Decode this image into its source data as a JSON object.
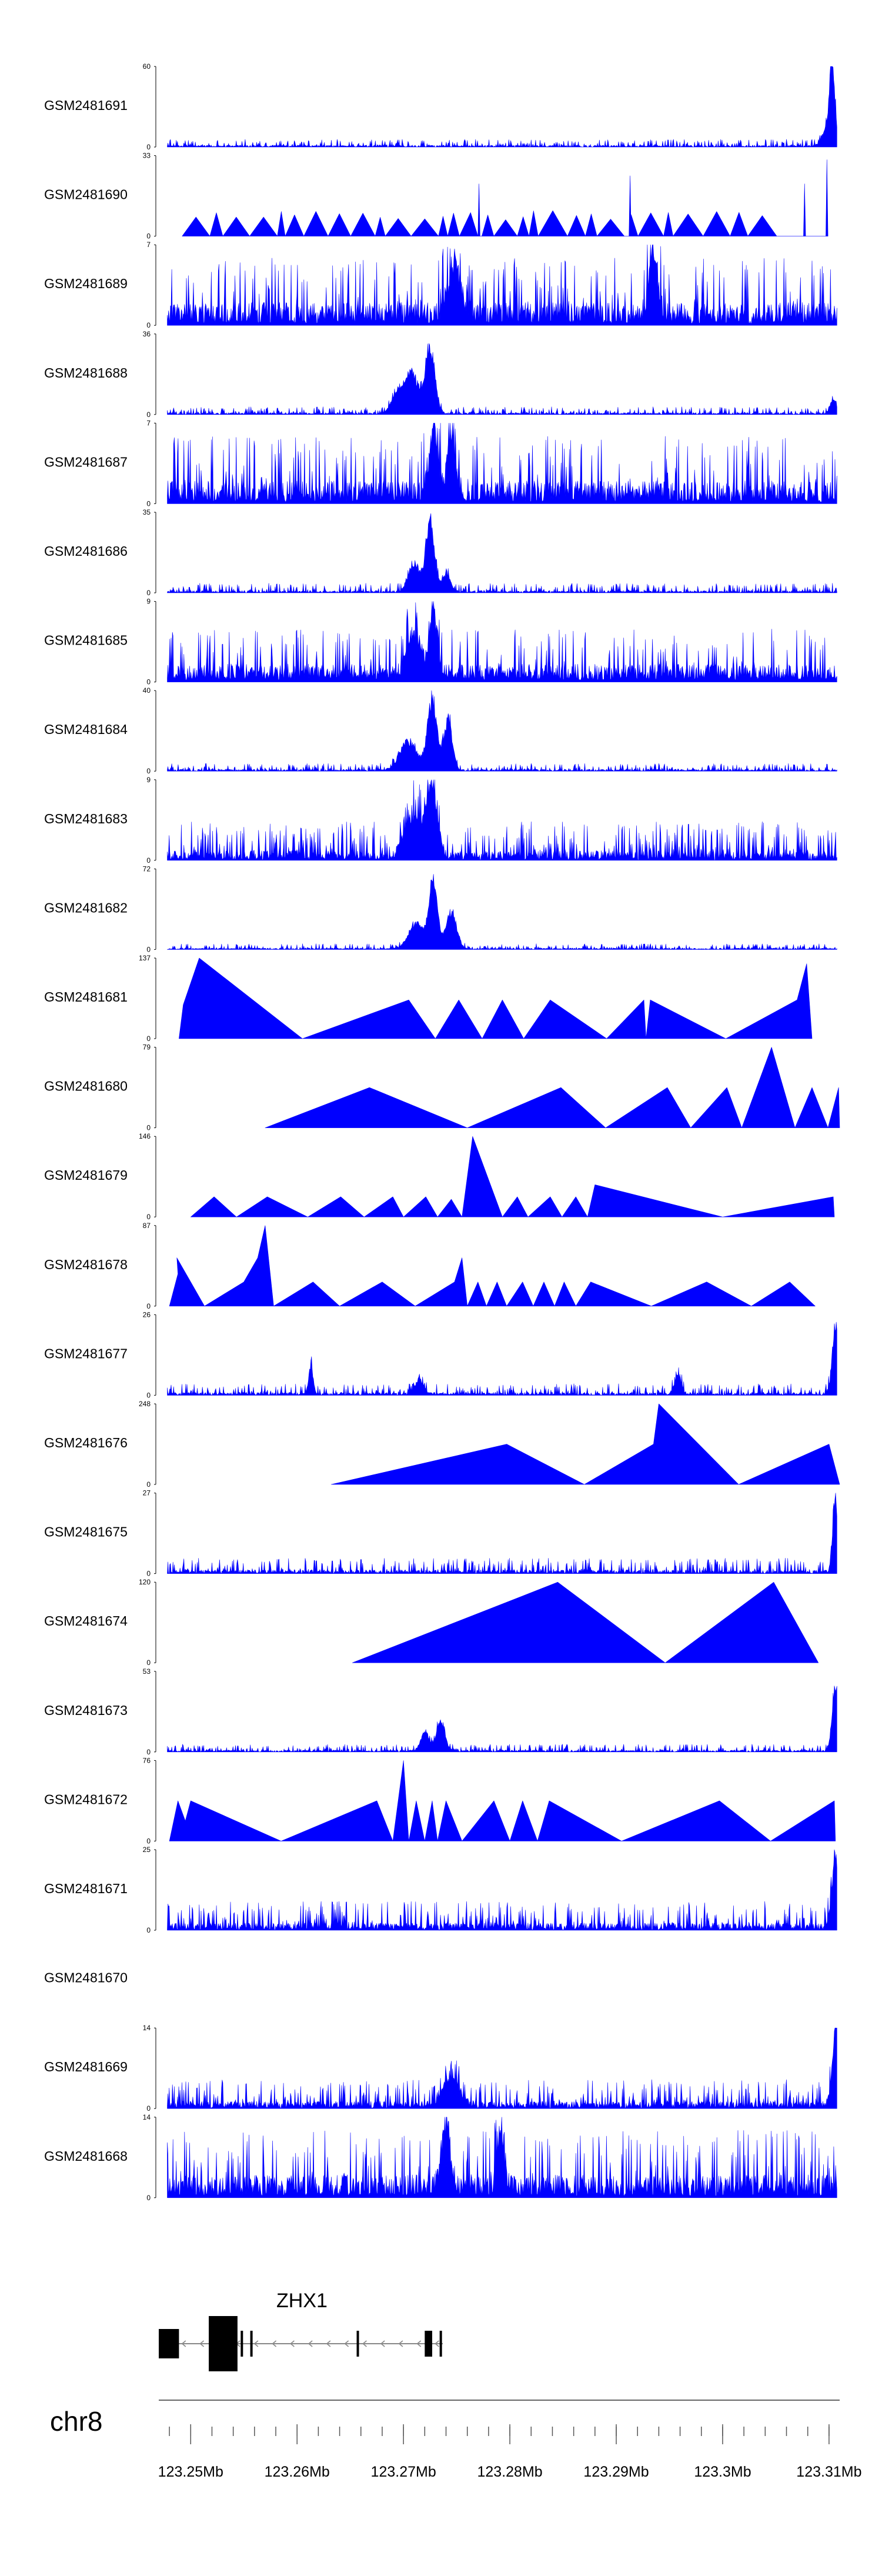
{
  "chart_data": {
    "type": "area",
    "title": "",
    "chromosome": "chr8",
    "xlim": [
      123.247,
      123.311
    ],
    "x_unit": "Mb",
    "x_ticks": [
      123.25,
      123.26,
      123.27,
      123.28,
      123.29,
      123.3,
      123.31
    ],
    "x_tick_labels": [
      "123.25Mb",
      "123.26Mb",
      "123.27Mb",
      "123.28Mb",
      "123.29Mb",
      "123.3Mb",
      "123.31Mb"
    ],
    "gene": {
      "name": "ZHX1",
      "strand": "-",
      "start": 123.247,
      "end": 123.2737,
      "exons": [
        [
          123.247,
          123.2489
        ],
        [
          123.2517,
          123.2544
        ],
        [
          123.2547,
          123.2549
        ],
        [
          123.2556,
          123.2558
        ],
        [
          123.2656,
          123.2658
        ],
        [
          123.272,
          123.2727
        ],
        [
          123.2734,
          123.2736
        ]
      ]
    },
    "series": [
      {
        "name": "GSM2481691",
        "ymin": 0,
        "ymax": 60,
        "style": "dense",
        "base": 0.04,
        "peaks": [
          [
            123.3103,
            1.0,
            0.00025
          ],
          [
            123.3099,
            0.25,
            0.0005
          ]
        ]
      },
      {
        "name": "GSM2481690",
        "ymin": 0,
        "ymax": 33,
        "style": "sparse",
        "start": 123.2492,
        "nseg": 30,
        "spikes": [
          [
            123.2771,
            0.65
          ],
          [
            123.2913,
            0.75
          ],
          [
            123.3077,
            0.65
          ],
          [
            123.3098,
            0.95
          ]
        ]
      },
      {
        "name": "GSM2481689",
        "ymin": 0,
        "ymax": 7,
        "style": "dense",
        "base": 0.38,
        "peaks": [
          [
            123.2935,
            0.9,
            0.0004
          ],
          [
            123.2748,
            0.7,
            0.0006
          ]
        ]
      },
      {
        "name": "GSM2481688",
        "ymin": 0,
        "ymax": 36,
        "style": "dense",
        "base": 0.04,
        "peaks": [
          [
            123.2725,
            0.95,
            0.00045
          ],
          [
            123.2708,
            0.55,
            0.0006
          ],
          [
            123.2695,
            0.3,
            0.0006
          ],
          [
            123.3104,
            0.2,
            0.0003
          ]
        ]
      },
      {
        "name": "GSM2481687",
        "ymin": 0,
        "ymax": 7,
        "style": "dense",
        "base": 0.38,
        "peaks": [
          [
            123.2728,
            0.9,
            0.0004
          ],
          [
            123.2745,
            0.75,
            0.0004
          ]
        ]
      },
      {
        "name": "GSM2481686",
        "ymin": 0,
        "ymax": 35,
        "style": "dense",
        "base": 0.05,
        "peaks": [
          [
            123.2725,
            1.0,
            0.0004
          ],
          [
            123.271,
            0.4,
            0.0005
          ],
          [
            123.274,
            0.25,
            0.0004
          ]
        ]
      },
      {
        "name": "GSM2481685",
        "ymin": 0,
        "ymax": 9,
        "style": "dense",
        "base": 0.3,
        "peaks": [
          [
            123.2728,
            0.9,
            0.0004
          ],
          [
            123.271,
            0.55,
            0.0006
          ]
        ]
      },
      {
        "name": "GSM2481684",
        "ymin": 0,
        "ymax": 40,
        "style": "dense",
        "base": 0.04,
        "peaks": [
          [
            123.2727,
            0.95,
            0.00045
          ],
          [
            123.2742,
            0.7,
            0.0004
          ],
          [
            123.2705,
            0.4,
            0.0008
          ]
        ]
      },
      {
        "name": "GSM2481683",
        "ymin": 0,
        "ymax": 9,
        "style": "dense",
        "base": 0.2,
        "peaks": [
          [
            123.2727,
            0.95,
            0.0005
          ],
          [
            123.271,
            0.55,
            0.0008
          ]
        ]
      },
      {
        "name": "GSM2481682",
        "ymin": 0,
        "ymax": 72,
        "style": "dense",
        "base": 0.03,
        "peaks": [
          [
            123.2728,
            0.95,
            0.0004
          ],
          [
            123.2745,
            0.5,
            0.0005
          ],
          [
            123.2712,
            0.35,
            0.0007
          ]
        ]
      },
      {
        "name": "GSM2481681",
        "ymin": 0,
        "ymax": 137,
        "style": "triangles",
        "points": [
          [
            123.2489,
            0
          ],
          [
            123.2493,
            0.42
          ],
          [
            123.2508,
            1.0
          ],
          [
            123.2605,
            0
          ],
          [
            123.2705,
            0.48
          ],
          [
            123.273,
            0
          ],
          [
            123.2752,
            0.48
          ],
          [
            123.2774,
            0
          ],
          [
            123.2793,
            0.48
          ],
          [
            123.2813,
            0
          ],
          [
            123.2838,
            0.48
          ],
          [
            123.2891,
            0
          ],
          [
            123.2926,
            0.48
          ],
          [
            123.2928,
            0
          ],
          [
            123.2932,
            0.48
          ],
          [
            123.3003,
            0
          ],
          [
            123.307,
            0.48
          ],
          [
            123.3079,
            0.93
          ],
          [
            123.3084,
            0
          ]
        ]
      },
      {
        "name": "GSM2481680",
        "ymin": 0,
        "ymax": 79,
        "style": "triangles",
        "points": [
          [
            123.257,
            0
          ],
          [
            123.2668,
            0.5
          ],
          [
            123.276,
            0
          ],
          [
            123.2848,
            0.5
          ],
          [
            123.289,
            0
          ],
          [
            123.2948,
            0.5
          ],
          [
            123.297,
            0
          ],
          [
            123.3004,
            0.5
          ],
          [
            123.3018,
            0
          ],
          [
            123.3046,
            1.0
          ],
          [
            123.3068,
            0
          ],
          [
            123.3084,
            0.5
          ],
          [
            123.3099,
            0
          ],
          [
            123.3109,
            0.5
          ],
          [
            123.311,
            0
          ]
        ]
      },
      {
        "name": "GSM2481679",
        "ymin": 0,
        "ymax": 146,
        "style": "triangles",
        "points": [
          [
            123.25,
            0
          ],
          [
            123.2522,
            0.25
          ],
          [
            123.2543,
            0
          ],
          [
            123.2572,
            0.25
          ],
          [
            123.261,
            0
          ],
          [
            123.2641,
            0.25
          ],
          [
            123.2663,
            0
          ],
          [
            123.269,
            0.25
          ],
          [
            123.27,
            0
          ],
          [
            123.2721,
            0.25
          ],
          [
            123.2732,
            0
          ],
          [
            123.2745,
            0.22
          ],
          [
            123.2755,
            0
          ],
          [
            123.2765,
            1.0
          ],
          [
            123.2793,
            0
          ],
          [
            123.2807,
            0.25
          ],
          [
            123.2817,
            0
          ],
          [
            123.2838,
            0.25
          ],
          [
            123.2849,
            0
          ],
          [
            123.2862,
            0.25
          ],
          [
            123.2873,
            0
          ],
          [
            123.288,
            0.4
          ],
          [
            123.3,
            0
          ],
          [
            123.3104,
            0.25
          ],
          [
            123.3105,
            0
          ]
        ]
      },
      {
        "name": "GSM2481678",
        "ymin": 0,
        "ymax": 87,
        "style": "triangles",
        "points": [
          [
            123.248,
            0
          ],
          [
            123.2488,
            0.4
          ],
          [
            123.2487,
            0.6
          ],
          [
            123.25,
            0.3
          ],
          [
            123.2513,
            0
          ],
          [
            123.255,
            0.3
          ],
          [
            123.2563,
            0.6
          ],
          [
            123.257,
            1.0
          ],
          [
            123.2578,
            0
          ],
          [
            123.2615,
            0.3
          ],
          [
            123.264,
            0
          ],
          [
            123.268,
            0.3
          ],
          [
            123.2711,
            0
          ],
          [
            123.2748,
            0.3
          ],
          [
            123.2755,
            0.6
          ],
          [
            123.276,
            0
          ],
          [
            123.277,
            0.3
          ],
          [
            123.2778,
            0
          ],
          [
            123.2788,
            0.3
          ],
          [
            123.2797,
            0
          ],
          [
            123.2812,
            0.3
          ],
          [
            123.2822,
            0
          ],
          [
            123.2832,
            0.3
          ],
          [
            123.2842,
            0
          ],
          [
            123.2851,
            0.3
          ],
          [
            123.2862,
            0
          ],
          [
            123.2876,
            0.3
          ],
          [
            123.2933,
            0
          ],
          [
            123.2985,
            0.3
          ],
          [
            123.3027,
            0
          ],
          [
            123.3063,
            0.3
          ],
          [
            123.3087,
            0
          ]
        ]
      },
      {
        "name": "GSM2481677",
        "ymin": 0,
        "ymax": 26,
        "style": "dense",
        "base": 0.06,
        "peaks": [
          [
            123.3106,
            0.95,
            0.0003
          ],
          [
            123.2613,
            0.42,
            0.0002
          ],
          [
            123.2958,
            0.25,
            0.0003
          ],
          [
            123.2715,
            0.2,
            0.0004
          ]
        ]
      },
      {
        "name": "GSM2481676",
        "ymin": 0,
        "ymax": 248,
        "style": "triangles",
        "points": [
          [
            123.2632,
            0
          ],
          [
            123.2797,
            0.5
          ],
          [
            123.287,
            0
          ],
          [
            123.2935,
            0.5
          ],
          [
            123.294,
            1.0
          ],
          [
            123.3015,
            0
          ],
          [
            123.31,
            0.5
          ],
          [
            123.311,
            0
          ]
        ]
      },
      {
        "name": "GSM2481675",
        "ymin": 0,
        "ymax": 27,
        "style": "dense",
        "base": 0.08,
        "peaks": [
          [
            123.3106,
            1.0,
            0.00025
          ]
        ]
      },
      {
        "name": "GSM2481674",
        "ymin": 0,
        "ymax": 120,
        "style": "triangles",
        "points": [
          [
            123.2652,
            0
          ],
          [
            123.2845,
            1.0
          ],
          [
            123.2946,
            0
          ],
          [
            123.3048,
            1.0
          ],
          [
            123.309,
            0
          ]
        ]
      },
      {
        "name": "GSM2481673",
        "ymin": 0,
        "ymax": 53,
        "style": "dense",
        "base": 0.04,
        "peaks": [
          [
            123.3106,
            0.95,
            0.0003
          ],
          [
            123.2735,
            0.42,
            0.0004
          ],
          [
            123.272,
            0.25,
            0.0004
          ]
        ]
      },
      {
        "name": "GSM2481672",
        "ymin": 0,
        "ymax": 76,
        "style": "triangles",
        "points": [
          [
            123.248,
            0
          ],
          [
            123.2488,
            0.5
          ],
          [
            123.2495,
            0.25
          ],
          [
            123.25,
            0.5
          ],
          [
            123.2585,
            0
          ],
          [
            123.2675,
            0.5
          ],
          [
            123.269,
            0
          ],
          [
            123.27,
            1.0
          ],
          [
            123.2705,
            0
          ],
          [
            123.2712,
            0.5
          ],
          [
            123.272,
            0
          ],
          [
            123.2727,
            0.5
          ],
          [
            123.2732,
            0
          ],
          [
            123.274,
            0.5
          ],
          [
            123.2755,
            0
          ],
          [
            123.2785,
            0.5
          ],
          [
            123.28,
            0
          ],
          [
            123.2812,
            0.5
          ],
          [
            123.2826,
            0
          ],
          [
            123.2837,
            0.5
          ],
          [
            123.2905,
            0
          ],
          [
            123.2997,
            0.5
          ],
          [
            123.3045,
            0
          ],
          [
            123.3105,
            0.5
          ],
          [
            123.3106,
            0
          ]
        ]
      },
      {
        "name": "GSM2481671",
        "ymin": 0,
        "ymax": 25,
        "style": "dense",
        "base": 0.15,
        "peaks": [
          [
            123.3106,
            1.0,
            0.0003
          ]
        ]
      },
      {
        "name": "GSM2481670",
        "empty": true
      },
      {
        "name": "GSM2481669",
        "ymin": 0,
        "ymax": 14,
        "style": "dense",
        "base": 0.15,
        "peaks": [
          [
            123.3106,
            0.95,
            0.0003
          ],
          [
            123.2745,
            0.35,
            0.0008
          ]
        ]
      },
      {
        "name": "GSM2481668",
        "ymin": 0,
        "ymax": 14,
        "style": "dense",
        "base": 0.38,
        "peaks": [
          [
            123.274,
            0.9,
            0.0004
          ],
          [
            123.2792,
            0.85,
            0.0003
          ]
        ]
      }
    ]
  }
}
